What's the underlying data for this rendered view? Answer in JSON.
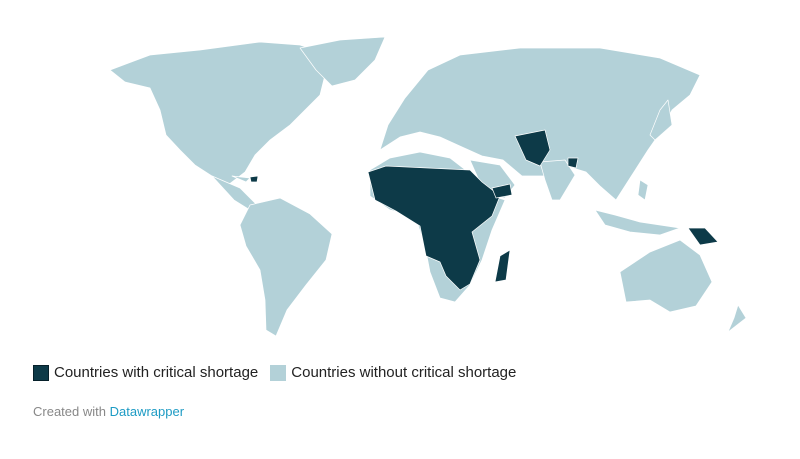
{
  "colors": {
    "critical": "#0d3a48",
    "non_critical": "#b3d1d8",
    "link": "#1d9bc4"
  },
  "legend": {
    "items": [
      {
        "label": "Countries with critical shortage",
        "color": "#0d3a48"
      },
      {
        "label": "Countries without critical shortage",
        "color": "#b3d1d8"
      }
    ]
  },
  "credit": {
    "prefix": "Created with",
    "link_text": "Datawrapper"
  },
  "map": {
    "critical_regions": [
      "Sub-Saharan Africa",
      "Yemen",
      "Afghanistan",
      "Pakistan",
      "Bangladesh",
      "Haiti",
      "Papua New Guinea",
      "Madagascar"
    ]
  }
}
